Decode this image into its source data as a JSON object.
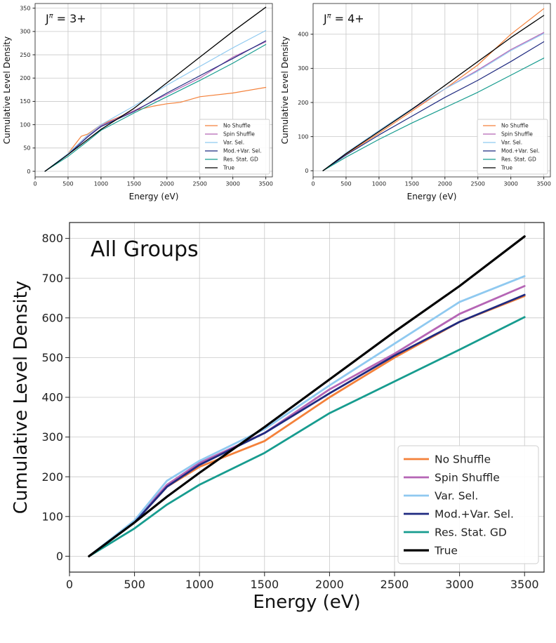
{
  "chart_data": [
    {
      "id": "p1",
      "type": "line",
      "annotation": "J^π = 3+",
      "xlabel": "Energy (eV)",
      "ylabel": "Cumulative Level Density",
      "xlim": [
        0,
        3600
      ],
      "ylim": [
        -12,
        360
      ],
      "xticks": [
        0,
        500,
        1000,
        1500,
        2000,
        2500,
        3000,
        3500
      ],
      "yticks": [
        0,
        50,
        100,
        150,
        200,
        250,
        300,
        350
      ],
      "grid": true,
      "legend_position": "lower-right",
      "series": [
        {
          "name": "No Shuffle",
          "color": "#f4813a",
          "points": [
            [
              150,
              0
            ],
            [
              300,
              15
            ],
            [
              500,
              38
            ],
            [
              700,
              75
            ],
            [
              800,
              80
            ],
            [
              1000,
              100
            ],
            [
              1200,
              112
            ],
            [
              1500,
              130
            ],
            [
              1800,
              140
            ],
            [
              2000,
              145
            ],
            [
              2200,
              148
            ],
            [
              2500,
              160
            ],
            [
              3000,
              168
            ],
            [
              3500,
              180
            ]
          ]
        },
        {
          "name": "Spin Shuffle",
          "color": "#b565b5",
          "points": [
            [
              150,
              0
            ],
            [
              500,
              37
            ],
            [
              800,
              75
            ],
            [
              1000,
              98
            ],
            [
              1500,
              130
            ],
            [
              2000,
              165
            ],
            [
              2500,
              200
            ],
            [
              3000,
              245
            ],
            [
              3500,
              278
            ]
          ]
        },
        {
          "name": "Var. Sel.",
          "color": "#8fc9f0",
          "points": [
            [
              150,
              0
            ],
            [
              500,
              38
            ],
            [
              800,
              78
            ],
            [
              1000,
              100
            ],
            [
              1500,
              140
            ],
            [
              2000,
              185
            ],
            [
              2500,
              225
            ],
            [
              3000,
              265
            ],
            [
              3500,
              302
            ]
          ]
        },
        {
          "name": "Mod.+Var. Sel.",
          "color": "#1f2a80",
          "points": [
            [
              150,
              0
            ],
            [
              500,
              36
            ],
            [
              800,
              74
            ],
            [
              1000,
              96
            ],
            [
              1500,
              128
            ],
            [
              2000,
              168
            ],
            [
              2500,
              205
            ],
            [
              3000,
              242
            ],
            [
              3500,
              280
            ]
          ]
        },
        {
          "name": "Res. Stat. GD",
          "color": "#179c8f",
          "points": [
            [
              150,
              0
            ],
            [
              500,
              32
            ],
            [
              800,
              65
            ],
            [
              1000,
              88
            ],
            [
              1500,
              125
            ],
            [
              2000,
              160
            ],
            [
              2500,
              195
            ],
            [
              3000,
              232
            ],
            [
              3500,
              272
            ]
          ]
        },
        {
          "name": "True",
          "color": "#000000",
          "points": [
            [
              150,
              0
            ],
            [
              500,
              36
            ],
            [
              1000,
              90
            ],
            [
              1500,
              135
            ],
            [
              2000,
              190
            ],
            [
              2500,
              245
            ],
            [
              3000,
              300
            ],
            [
              3500,
              352
            ]
          ]
        }
      ]
    },
    {
      "id": "p2",
      "type": "line",
      "annotation": "J^π = 4+",
      "xlabel": "Energy (eV)",
      "ylabel": "Cumulative Level Density",
      "xlim": [
        0,
        3600
      ],
      "ylim": [
        -18,
        490
      ],
      "xticks": [
        0,
        500,
        1000,
        1500,
        2000,
        2500,
        3000,
        3500
      ],
      "yticks": [
        0,
        100,
        200,
        300,
        400
      ],
      "grid": true,
      "legend_position": "lower-right",
      "series": [
        {
          "name": "No Shuffle",
          "color": "#f4813a",
          "points": [
            [
              150,
              0
            ],
            [
              500,
              48
            ],
            [
              1000,
              110
            ],
            [
              1500,
              175
            ],
            [
              2000,
              240
            ],
            [
              2500,
              310
            ],
            [
              3000,
              400
            ],
            [
              3500,
              475
            ]
          ]
        },
        {
          "name": "Spin Shuffle",
          "color": "#b565b5",
          "points": [
            [
              150,
              0
            ],
            [
              500,
              50
            ],
            [
              1000,
              115
            ],
            [
              1500,
              180
            ],
            [
              2000,
              240
            ],
            [
              2500,
              295
            ],
            [
              3000,
              355
            ],
            [
              3500,
              405
            ]
          ]
        },
        {
          "name": "Var. Sel.",
          "color": "#8fc9f0",
          "points": [
            [
              150,
              0
            ],
            [
              500,
              52
            ],
            [
              1000,
              118
            ],
            [
              1500,
              182
            ],
            [
              2000,
              240
            ],
            [
              2500,
              292
            ],
            [
              3000,
              352
            ],
            [
              3500,
              402
            ]
          ]
        },
        {
          "name": "Mod.+Var. Sel.",
          "color": "#1f2a80",
          "points": [
            [
              150,
              0
            ],
            [
              500,
              46
            ],
            [
              1000,
              105
            ],
            [
              1500,
              160
            ],
            [
              2000,
              215
            ],
            [
              2500,
              265
            ],
            [
              3000,
              320
            ],
            [
              3500,
              378
            ]
          ]
        },
        {
          "name": "Res. Stat. GD",
          "color": "#179c8f",
          "points": [
            [
              150,
              0
            ],
            [
              500,
              40
            ],
            [
              1000,
              92
            ],
            [
              1500,
              140
            ],
            [
              2000,
              185
            ],
            [
              2500,
              230
            ],
            [
              3000,
              280
            ],
            [
              3500,
              330
            ]
          ]
        },
        {
          "name": "True",
          "color": "#000000",
          "points": [
            [
              150,
              0
            ],
            [
              500,
              50
            ],
            [
              1000,
              115
            ],
            [
              1500,
              180
            ],
            [
              2000,
              250
            ],
            [
              2500,
              320
            ],
            [
              3000,
              390
            ],
            [
              3500,
              455
            ]
          ]
        }
      ]
    },
    {
      "id": "p3",
      "type": "line",
      "annotation": "All Groups",
      "xlabel": "Energy (eV)",
      "ylabel": "Cumulative Level Density",
      "xlim": [
        0,
        3650
      ],
      "ylim": [
        -40,
        840
      ],
      "xticks": [
        0,
        500,
        1000,
        1500,
        2000,
        2500,
        3000,
        3500
      ],
      "yticks": [
        0,
        100,
        200,
        300,
        400,
        500,
        600,
        700,
        800
      ],
      "grid": true,
      "legend_position": "lower-right",
      "series": [
        {
          "name": "No Shuffle",
          "color": "#f4813a",
          "points": [
            [
              150,
              0
            ],
            [
              500,
              85
            ],
            [
              750,
              175
            ],
            [
              1000,
              225
            ],
            [
              1500,
              290
            ],
            [
              2000,
              400
            ],
            [
              2500,
              500
            ],
            [
              3000,
              590
            ],
            [
              3500,
              655
            ]
          ]
        },
        {
          "name": "Spin Shuffle",
          "color": "#b565b5",
          "points": [
            [
              150,
              0
            ],
            [
              500,
              88
            ],
            [
              750,
              180
            ],
            [
              1000,
              235
            ],
            [
              1500,
              310
            ],
            [
              2000,
              420
            ],
            [
              2500,
              510
            ],
            [
              3000,
              610
            ],
            [
              3500,
              680
            ]
          ]
        },
        {
          "name": "Var. Sel.",
          "color": "#8fc9f0",
          "points": [
            [
              150,
              0
            ],
            [
              500,
              90
            ],
            [
              750,
              190
            ],
            [
              1000,
              240
            ],
            [
              1500,
              320
            ],
            [
              2000,
              430
            ],
            [
              2500,
              535
            ],
            [
              3000,
              640
            ],
            [
              3500,
              705
            ]
          ]
        },
        {
          "name": "Mod.+Var. Sel.",
          "color": "#1f2a80",
          "points": [
            [
              150,
              0
            ],
            [
              500,
              85
            ],
            [
              750,
              175
            ],
            [
              1000,
              230
            ],
            [
              1500,
              310
            ],
            [
              2000,
              410
            ],
            [
              2500,
              505
            ],
            [
              3000,
              590
            ],
            [
              3500,
              658
            ]
          ]
        },
        {
          "name": "Res. Stat. GD",
          "color": "#179c8f",
          "points": [
            [
              150,
              0
            ],
            [
              500,
              70
            ],
            [
              750,
              130
            ],
            [
              1000,
              180
            ],
            [
              1500,
              260
            ],
            [
              2000,
              360
            ],
            [
              2500,
              440
            ],
            [
              3000,
              520
            ],
            [
              3500,
              602
            ]
          ]
        },
        {
          "name": "True",
          "color": "#000000",
          "points": [
            [
              150,
              0
            ],
            [
              500,
              85
            ],
            [
              750,
              150
            ],
            [
              1000,
              210
            ],
            [
              1500,
              325
            ],
            [
              2000,
              445
            ],
            [
              2500,
              565
            ],
            [
              3000,
              680
            ],
            [
              3500,
              805
            ]
          ]
        }
      ]
    }
  ]
}
